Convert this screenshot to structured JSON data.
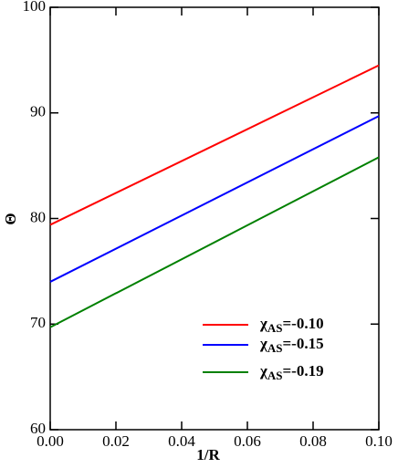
{
  "chart_data": {
    "type": "line",
    "x_label": "1/R",
    "y_label": "Θ",
    "x": [
      0.0,
      0.1
    ],
    "series": [
      {
        "name": "χAS=-0.10",
        "color": "#ff0000",
        "values": [
          79.4,
          94.5
        ]
      },
      {
        "name": "χAS=-0.15",
        "color": "#0000ff",
        "values": [
          74.0,
          89.7
        ]
      },
      {
        "name": "χAS=-0.19",
        "color": "#008000",
        "values": [
          69.7,
          85.8
        ]
      }
    ],
    "xlim": [
      0.0,
      0.1
    ],
    "xticks": [
      {
        "value": 0,
        "label": "0.00"
      },
      {
        "value": 0.02,
        "label": "0.02"
      },
      {
        "value": 0.04,
        "label": "0.04"
      },
      {
        "value": 0.06,
        "label": "0.06"
      },
      {
        "value": 0.08,
        "label": "0.08"
      },
      {
        "value": 0.1,
        "label": "0.10"
      }
    ],
    "ylim": [
      60,
      100
    ],
    "yticks": [
      60,
      70,
      80,
      90,
      100
    ],
    "legend": "lower-right"
  }
}
